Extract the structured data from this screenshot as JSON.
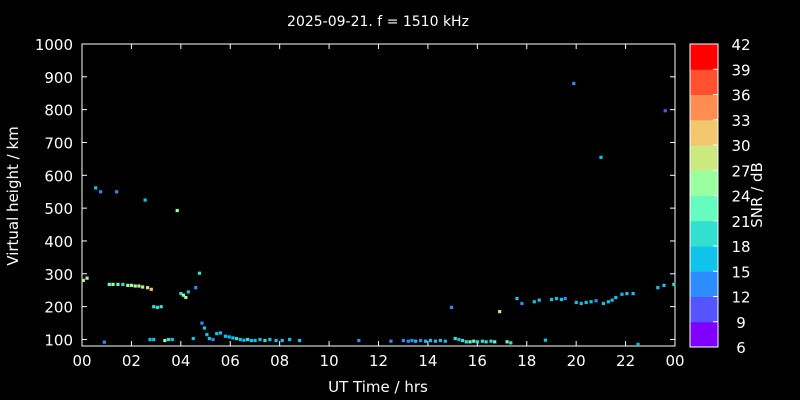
{
  "chart_data": {
    "type": "scatter",
    "title": "2025-09-21. f = 1510 kHz",
    "xlabel": "UT Time / hrs",
    "ylabel": "Virtual height / km",
    "xlim": [
      0,
      24
    ],
    "ylim": [
      80,
      1000
    ],
    "xticks": [
      "00",
      "02",
      "04",
      "06",
      "08",
      "10",
      "12",
      "14",
      "16",
      "18",
      "20",
      "22",
      "00"
    ],
    "yticks": [
      100,
      200,
      300,
      400,
      500,
      600,
      700,
      800,
      900,
      1000
    ],
    "grid": false,
    "colorbar": {
      "label": "SNR / dB",
      "range": [
        6,
        42
      ],
      "ticks": [
        6,
        9,
        12,
        15,
        18,
        21,
        24,
        27,
        30,
        33,
        36,
        39,
        42
      ],
      "colors": [
        "#8000ff",
        "#5555ff",
        "#2d8cff",
        "#0fc3ea",
        "#33e0d0",
        "#66fcc0",
        "#99ff9f",
        "#cce97f",
        "#f2c76d",
        "#ff8c50",
        "#ff5030",
        "#ff0000"
      ]
    },
    "points": [
      {
        "x": 0.05,
        "y": 280,
        "snr": 28
      },
      {
        "x": 0.2,
        "y": 287,
        "snr": 26
      },
      {
        "x": 0.55,
        "y": 562,
        "snr": 15
      },
      {
        "x": 0.75,
        "y": 550,
        "snr": 13
      },
      {
        "x": 0.9,
        "y": 92,
        "snr": 14
      },
      {
        "x": 1.1,
        "y": 268,
        "snr": 23
      },
      {
        "x": 1.25,
        "y": 268,
        "snr": 24
      },
      {
        "x": 1.4,
        "y": 550,
        "snr": 13
      },
      {
        "x": 1.45,
        "y": 268,
        "snr": 22
      },
      {
        "x": 1.65,
        "y": 268,
        "snr": 20
      },
      {
        "x": 1.85,
        "y": 265,
        "snr": 24
      },
      {
        "x": 2.0,
        "y": 265,
        "snr": 26
      },
      {
        "x": 2.15,
        "y": 263,
        "snr": 25
      },
      {
        "x": 2.3,
        "y": 263,
        "snr": 27
      },
      {
        "x": 2.45,
        "y": 260,
        "snr": 26
      },
      {
        "x": 2.55,
        "y": 525,
        "snr": 15
      },
      {
        "x": 2.65,
        "y": 258,
        "snr": 29
      },
      {
        "x": 2.8,
        "y": 253,
        "snr": 30
      },
      {
        "x": 2.75,
        "y": 100,
        "snr": 15
      },
      {
        "x": 2.9,
        "y": 100,
        "snr": 17
      },
      {
        "x": 2.9,
        "y": 200,
        "snr": 18
      },
      {
        "x": 3.05,
        "y": 198,
        "snr": 19
      },
      {
        "x": 3.2,
        "y": 200,
        "snr": 18
      },
      {
        "x": 3.35,
        "y": 97,
        "snr": 25
      },
      {
        "x": 3.5,
        "y": 100,
        "snr": 20
      },
      {
        "x": 3.65,
        "y": 100,
        "snr": 17
      },
      {
        "x": 3.85,
        "y": 493,
        "snr": 25
      },
      {
        "x": 4.0,
        "y": 240,
        "snr": 20
      },
      {
        "x": 4.1,
        "y": 235,
        "snr": 24
      },
      {
        "x": 4.2,
        "y": 228,
        "snr": 26
      },
      {
        "x": 4.3,
        "y": 245,
        "snr": 15
      },
      {
        "x": 4.5,
        "y": 103,
        "snr": 16
      },
      {
        "x": 4.6,
        "y": 258,
        "snr": 14
      },
      {
        "x": 4.75,
        "y": 302,
        "snr": 18
      },
      {
        "x": 4.85,
        "y": 150,
        "snr": 14
      },
      {
        "x": 4.95,
        "y": 135,
        "snr": 15
      },
      {
        "x": 5.05,
        "y": 115,
        "snr": 17
      },
      {
        "x": 5.15,
        "y": 103,
        "snr": 15
      },
      {
        "x": 5.3,
        "y": 100,
        "snr": 14
      },
      {
        "x": 5.45,
        "y": 118,
        "snr": 17
      },
      {
        "x": 5.6,
        "y": 120,
        "snr": 16
      },
      {
        "x": 5.8,
        "y": 110,
        "snr": 15
      },
      {
        "x": 5.95,
        "y": 108,
        "snr": 17
      },
      {
        "x": 6.1,
        "y": 105,
        "snr": 16
      },
      {
        "x": 6.25,
        "y": 103,
        "snr": 18
      },
      {
        "x": 6.4,
        "y": 100,
        "snr": 16
      },
      {
        "x": 6.55,
        "y": 98,
        "snr": 17
      },
      {
        "x": 6.7,
        "y": 100,
        "snr": 18
      },
      {
        "x": 6.85,
        "y": 97,
        "snr": 16
      },
      {
        "x": 7.0,
        "y": 97,
        "snr": 17
      },
      {
        "x": 7.2,
        "y": 100,
        "snr": 15
      },
      {
        "x": 7.4,
        "y": 97,
        "snr": 18
      },
      {
        "x": 7.6,
        "y": 100,
        "snr": 16
      },
      {
        "x": 7.85,
        "y": 97,
        "snr": 17
      },
      {
        "x": 8.1,
        "y": 97,
        "snr": 15
      },
      {
        "x": 8.4,
        "y": 100,
        "snr": 16
      },
      {
        "x": 8.8,
        "y": 97,
        "snr": 17
      },
      {
        "x": 11.2,
        "y": 97,
        "snr": 12
      },
      {
        "x": 12.5,
        "y": 95,
        "snr": 13
      },
      {
        "x": 13.0,
        "y": 97,
        "snr": 12
      },
      {
        "x": 13.2,
        "y": 95,
        "snr": 14
      },
      {
        "x": 13.35,
        "y": 97,
        "snr": 13
      },
      {
        "x": 13.5,
        "y": 95,
        "snr": 15
      },
      {
        "x": 13.7,
        "y": 97,
        "snr": 14
      },
      {
        "x": 13.9,
        "y": 95,
        "snr": 16
      },
      {
        "x": 14.1,
        "y": 97,
        "snr": 15
      },
      {
        "x": 14.3,
        "y": 95,
        "snr": 17
      },
      {
        "x": 14.5,
        "y": 97,
        "snr": 16
      },
      {
        "x": 14.7,
        "y": 95,
        "snr": 15
      },
      {
        "x": 14.95,
        "y": 198,
        "snr": 13
      },
      {
        "x": 15.1,
        "y": 103,
        "snr": 18
      },
      {
        "x": 15.25,
        "y": 100,
        "snr": 17
      },
      {
        "x": 15.4,
        "y": 97,
        "snr": 19
      },
      {
        "x": 15.55,
        "y": 93,
        "snr": 20
      },
      {
        "x": 15.7,
        "y": 93,
        "snr": 22
      },
      {
        "x": 15.85,
        "y": 95,
        "snr": 21
      },
      {
        "x": 16.0,
        "y": 93,
        "snr": 20
      },
      {
        "x": 16.2,
        "y": 95,
        "snr": 18
      },
      {
        "x": 16.35,
        "y": 93,
        "snr": 19
      },
      {
        "x": 16.55,
        "y": 95,
        "snr": 18
      },
      {
        "x": 16.7,
        "y": 93,
        "snr": 21
      },
      {
        "x": 16.9,
        "y": 185,
        "snr": 27
      },
      {
        "x": 17.2,
        "y": 93,
        "snr": 23
      },
      {
        "x": 17.35,
        "y": 90,
        "snr": 20
      },
      {
        "x": 17.6,
        "y": 225,
        "snr": 15
      },
      {
        "x": 17.8,
        "y": 210,
        "snr": 14
      },
      {
        "x": 18.3,
        "y": 215,
        "snr": 16
      },
      {
        "x": 18.5,
        "y": 220,
        "snr": 17
      },
      {
        "x": 18.75,
        "y": 98,
        "snr": 16
      },
      {
        "x": 19.0,
        "y": 222,
        "snr": 15
      },
      {
        "x": 19.2,
        "y": 225,
        "snr": 17
      },
      {
        "x": 19.4,
        "y": 222,
        "snr": 16
      },
      {
        "x": 19.55,
        "y": 225,
        "snr": 14
      },
      {
        "x": 19.9,
        "y": 880,
        "snr": 12
      },
      {
        "x": 20.0,
        "y": 213,
        "snr": 16
      },
      {
        "x": 20.2,
        "y": 210,
        "snr": 17
      },
      {
        "x": 20.4,
        "y": 213,
        "snr": 15
      },
      {
        "x": 20.6,
        "y": 215,
        "snr": 16
      },
      {
        "x": 20.8,
        "y": 218,
        "snr": 14
      },
      {
        "x": 21.0,
        "y": 655,
        "snr": 15
      },
      {
        "x": 21.1,
        "y": 210,
        "snr": 15
      },
      {
        "x": 21.3,
        "y": 215,
        "snr": 16
      },
      {
        "x": 21.45,
        "y": 220,
        "snr": 17
      },
      {
        "x": 21.6,
        "y": 228,
        "snr": 16
      },
      {
        "x": 21.85,
        "y": 238,
        "snr": 15
      },
      {
        "x": 22.05,
        "y": 240,
        "snr": 16
      },
      {
        "x": 22.3,
        "y": 240,
        "snr": 17
      },
      {
        "x": 22.5,
        "y": 85,
        "snr": 15
      },
      {
        "x": 23.3,
        "y": 258,
        "snr": 15
      },
      {
        "x": 23.55,
        "y": 265,
        "snr": 16
      },
      {
        "x": 23.6,
        "y": 797,
        "snr": 10
      },
      {
        "x": 23.95,
        "y": 268,
        "snr": 19
      }
    ]
  }
}
